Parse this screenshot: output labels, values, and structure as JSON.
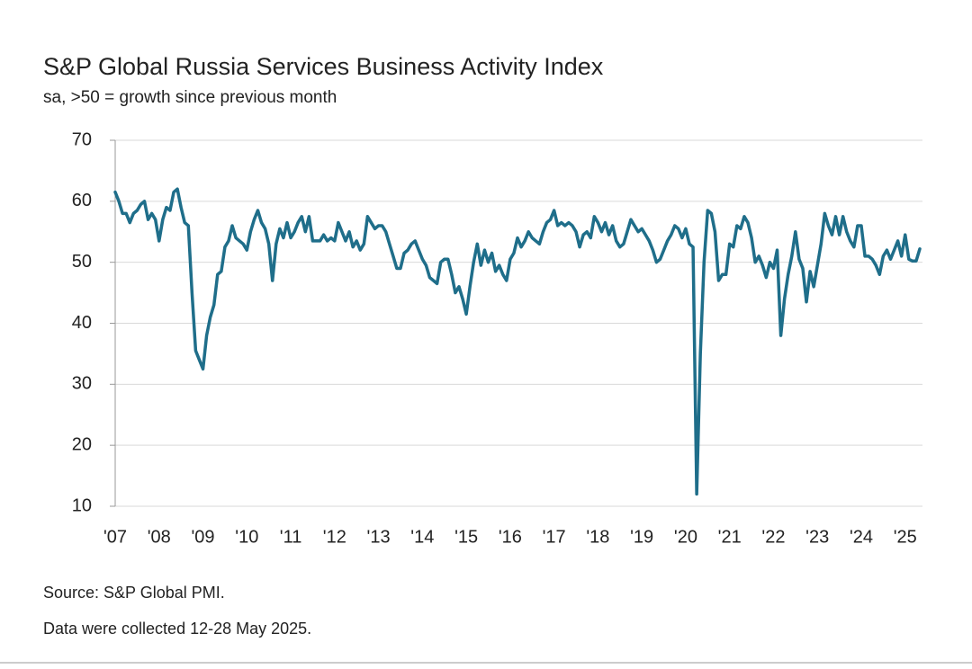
{
  "chart_data": {
    "type": "line",
    "title": "S&P Global Russia Services Business Activity Index",
    "subtitle": "sa, >50 = growth since previous month",
    "source": "Source: S&P Global PMI.",
    "note": "Data were collected 12-28 May 2025.",
    "color": "#1f6e8a",
    "grid": true,
    "ylim": [
      10,
      70
    ],
    "yticks": [
      10,
      20,
      30,
      40,
      50,
      60,
      70
    ],
    "categories": [
      "'07",
      null,
      null,
      null,
      null,
      null,
      null,
      null,
      null,
      null,
      null,
      null,
      "'08",
      null,
      null,
      null,
      null,
      null,
      null,
      null,
      null,
      null,
      null,
      null,
      "'09",
      null,
      null,
      null,
      null,
      null,
      null,
      null,
      null,
      null,
      null,
      null,
      "'10",
      null,
      null,
      null,
      null,
      null,
      null,
      null,
      null,
      null,
      null,
      null,
      "'11",
      null,
      null,
      null,
      null,
      null,
      null,
      null,
      null,
      null,
      null,
      null,
      "'12",
      null,
      null,
      null,
      null,
      null,
      null,
      null,
      null,
      null,
      null,
      null,
      "'13",
      null,
      null,
      null,
      null,
      null,
      null,
      null,
      null,
      null,
      null,
      null,
      "'14",
      null,
      null,
      null,
      null,
      null,
      null,
      null,
      null,
      null,
      null,
      null,
      "'15",
      null,
      null,
      null,
      null,
      null,
      null,
      null,
      null,
      null,
      null,
      null,
      "'16",
      null,
      null,
      null,
      null,
      null,
      null,
      null,
      null,
      null,
      null,
      null,
      "'17",
      null,
      null,
      null,
      null,
      null,
      null,
      null,
      null,
      null,
      null,
      null,
      "'18",
      null,
      null,
      null,
      null,
      null,
      null,
      null,
      null,
      null,
      null,
      null,
      "'19",
      null,
      null,
      null,
      null,
      null,
      null,
      null,
      null,
      null,
      null,
      null,
      "'20",
      null,
      null,
      null,
      null,
      null,
      null,
      null,
      null,
      null,
      null,
      null,
      "'21",
      null,
      null,
      null,
      null,
      null,
      null,
      null,
      null,
      null,
      null,
      null,
      "'22",
      null,
      null,
      null,
      null,
      null,
      null,
      null,
      null,
      null,
      null,
      null,
      "'23",
      null,
      null,
      null,
      null,
      null,
      null,
      null,
      null,
      null,
      null,
      null,
      "'24",
      null,
      null,
      null,
      null,
      null,
      null,
      null,
      null,
      null,
      null,
      null,
      "'25",
      null,
      null,
      null,
      null
    ],
    "values": [
      61.5,
      60,
      58,
      58,
      56.5,
      58,
      58.5,
      59.5,
      60,
      57,
      58,
      57,
      53.5,
      57,
      59,
      58.5,
      61.5,
      62,
      59,
      56.5,
      56,
      45,
      35.5,
      34,
      32.5,
      38,
      41,
      43,
      48,
      48.5,
      52.5,
      53.5,
      56,
      54,
      53.5,
      53,
      52,
      55,
      57,
      58.5,
      56.5,
      55.5,
      53,
      47,
      53,
      55.5,
      54,
      56.5,
      54,
      55,
      56.5,
      57.5,
      55,
      57.5,
      53.5,
      53.5,
      53.5,
      54.5,
      53.5,
      54,
      53.5,
      56.5,
      55,
      53.5,
      55,
      52.5,
      53.5,
      52,
      53,
      57.5,
      56.5,
      55.5,
      56,
      56,
      55,
      53,
      51,
      49,
      49,
      51.5,
      52,
      53,
      53.5,
      52,
      50.5,
      49.5,
      47.5,
      47,
      46.5,
      50,
      50.5,
      50.5,
      48,
      45,
      46,
      44,
      41.5,
      46,
      50,
      53,
      49.5,
      52,
      50,
      51.5,
      48.5,
      49.5,
      48,
      47,
      50.5,
      51.5,
      54,
      52.5,
      53.5,
      55,
      54,
      53.5,
      53,
      55,
      56.5,
      57,
      58.5,
      56,
      56.5,
      56,
      56.5,
      56,
      55,
      52.5,
      54.5,
      55,
      54,
      57.5,
      56.5,
      55,
      56.5,
      54.5,
      56,
      53.5,
      52.5,
      53,
      55,
      57,
      56,
      55,
      55.5,
      54.5,
      53.5,
      52,
      50,
      50.5,
      52,
      53.5,
      54.5,
      56,
      55.5,
      54,
      55.5,
      53,
      52.5,
      12,
      35,
      50,
      58.5,
      58,
      55,
      47,
      48,
      48,
      53,
      52.5,
      56,
      55.5,
      57.5,
      56.5,
      54,
      50,
      51,
      49.5,
      47.5,
      50,
      49,
      52,
      38,
      44,
      48,
      51,
      55,
      50.5,
      49,
      43.5,
      48.5,
      46,
      49.5,
      53,
      58,
      56,
      54.5,
      57.5,
      54.5,
      57.5,
      55,
      53.5,
      52.5,
      56,
      56,
      51,
      51,
      50.5,
      49.5,
      48,
      51,
      52,
      50.5,
      52,
      53.5,
      51,
      54.5,
      50.5,
      50.2,
      50.2,
      52.2
    ]
  }
}
